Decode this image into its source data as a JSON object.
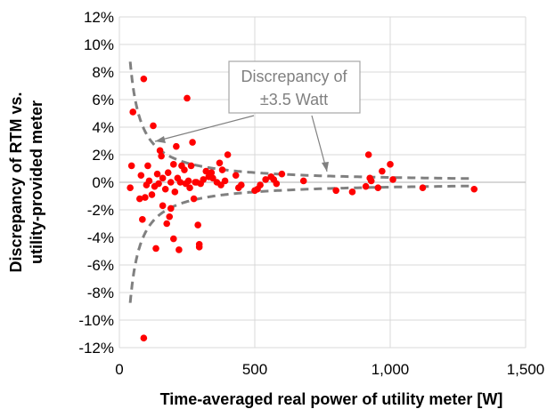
{
  "chart_data": {
    "type": "scatter",
    "xlabel": "Time-averaged real power of utility meter [W]",
    "ylabel_lines": [
      "Discrepancy of RTM vs.",
      "utility-provided meter"
    ],
    "xlim": [
      0,
      1500
    ],
    "ylim": [
      -12,
      12
    ],
    "x_ticks": [
      0,
      500,
      1000,
      1500
    ],
    "x_tick_labels": [
      "0",
      "500",
      "1,000",
      "1,500"
    ],
    "y_ticks": [
      12,
      10,
      8,
      6,
      4,
      2,
      0,
      -2,
      -4,
      -6,
      -8,
      -10,
      -12
    ],
    "y_tick_labels": [
      "12%",
      "10%",
      "8%",
      "6%",
      "4%",
      "2%",
      "0%",
      "-2%",
      "-4%",
      "-6%",
      "-8%",
      "-10%",
      "-12%"
    ],
    "grid": "both",
    "annotation_lines": [
      "Discrepancy of",
      "±3.5 Watt"
    ],
    "bound_watts": 3.5,
    "bound_x_range": [
      40,
      1310
    ],
    "marker_color": "#ff0000",
    "bound_color": "#808080",
    "points": [
      [
        40,
        -0.4
      ],
      [
        45,
        1.2
      ],
      [
        50,
        5.1
      ],
      [
        75,
        -1.2
      ],
      [
        80,
        0.5
      ],
      [
        85,
        -2.7
      ],
      [
        90,
        7.5
      ],
      [
        90,
        -11.3
      ],
      [
        95,
        -1.1
      ],
      [
        100,
        -0.2
      ],
      [
        105,
        1.2
      ],
      [
        110,
        0.1
      ],
      [
        120,
        -0.9
      ],
      [
        125,
        4.1
      ],
      [
        130,
        -0.3
      ],
      [
        135,
        -4.8
      ],
      [
        140,
        0.6
      ],
      [
        145,
        -0.1
      ],
      [
        150,
        2.3
      ],
      [
        155,
        1.9
      ],
      [
        160,
        -1.7
      ],
      [
        160,
        0.3
      ],
      [
        170,
        -0.5
      ],
      [
        175,
        -3.0
      ],
      [
        180,
        0.7
      ],
      [
        185,
        -2.5
      ],
      [
        190,
        -1.9
      ],
      [
        190,
        0.0
      ],
      [
        200,
        -4.1
      ],
      [
        200,
        1.3
      ],
      [
        205,
        -0.7
      ],
      [
        210,
        2.6
      ],
      [
        215,
        0.3
      ],
      [
        220,
        -4.9
      ],
      [
        225,
        0.0
      ],
      [
        230,
        1.2
      ],
      [
        240,
        0.9
      ],
      [
        245,
        -0.1
      ],
      [
        250,
        6.1
      ],
      [
        255,
        0.1
      ],
      [
        260,
        -0.4
      ],
      [
        265,
        1.2
      ],
      [
        270,
        2.9
      ],
      [
        275,
        -1.2
      ],
      [
        280,
        0.0
      ],
      [
        285,
        0.0
      ],
      [
        290,
        -3.1
      ],
      [
        295,
        -4.5
      ],
      [
        295,
        -4.7
      ],
      [
        300,
        -0.1
      ],
      [
        310,
        0.2
      ],
      [
        320,
        0.8
      ],
      [
        330,
        0.4
      ],
      [
        340,
        0.7
      ],
      [
        345,
        0.3
      ],
      [
        360,
        0.0
      ],
      [
        370,
        1.4
      ],
      [
        375,
        -0.2
      ],
      [
        380,
        0.9
      ],
      [
        390,
        0.1
      ],
      [
        400,
        2.0
      ],
      [
        430,
        0.5
      ],
      [
        440,
        -0.4
      ],
      [
        450,
        -0.2
      ],
      [
        500,
        -0.6
      ],
      [
        510,
        -0.5
      ],
      [
        520,
        -0.2
      ],
      [
        540,
        0.2
      ],
      [
        560,
        0.4
      ],
      [
        570,
        0.2
      ],
      [
        580,
        -0.1
      ],
      [
        600,
        0.6
      ],
      [
        680,
        0.1
      ],
      [
        800,
        -0.6
      ],
      [
        860,
        -0.7
      ],
      [
        910,
        -0.3
      ],
      [
        920,
        2.0
      ],
      [
        925,
        0.3
      ],
      [
        930,
        0.1
      ],
      [
        955,
        -0.4
      ],
      [
        970,
        0.8
      ],
      [
        1000,
        1.3
      ],
      [
        1010,
        0.2
      ],
      [
        1120,
        -0.4
      ],
      [
        1310,
        -0.5
      ]
    ]
  }
}
